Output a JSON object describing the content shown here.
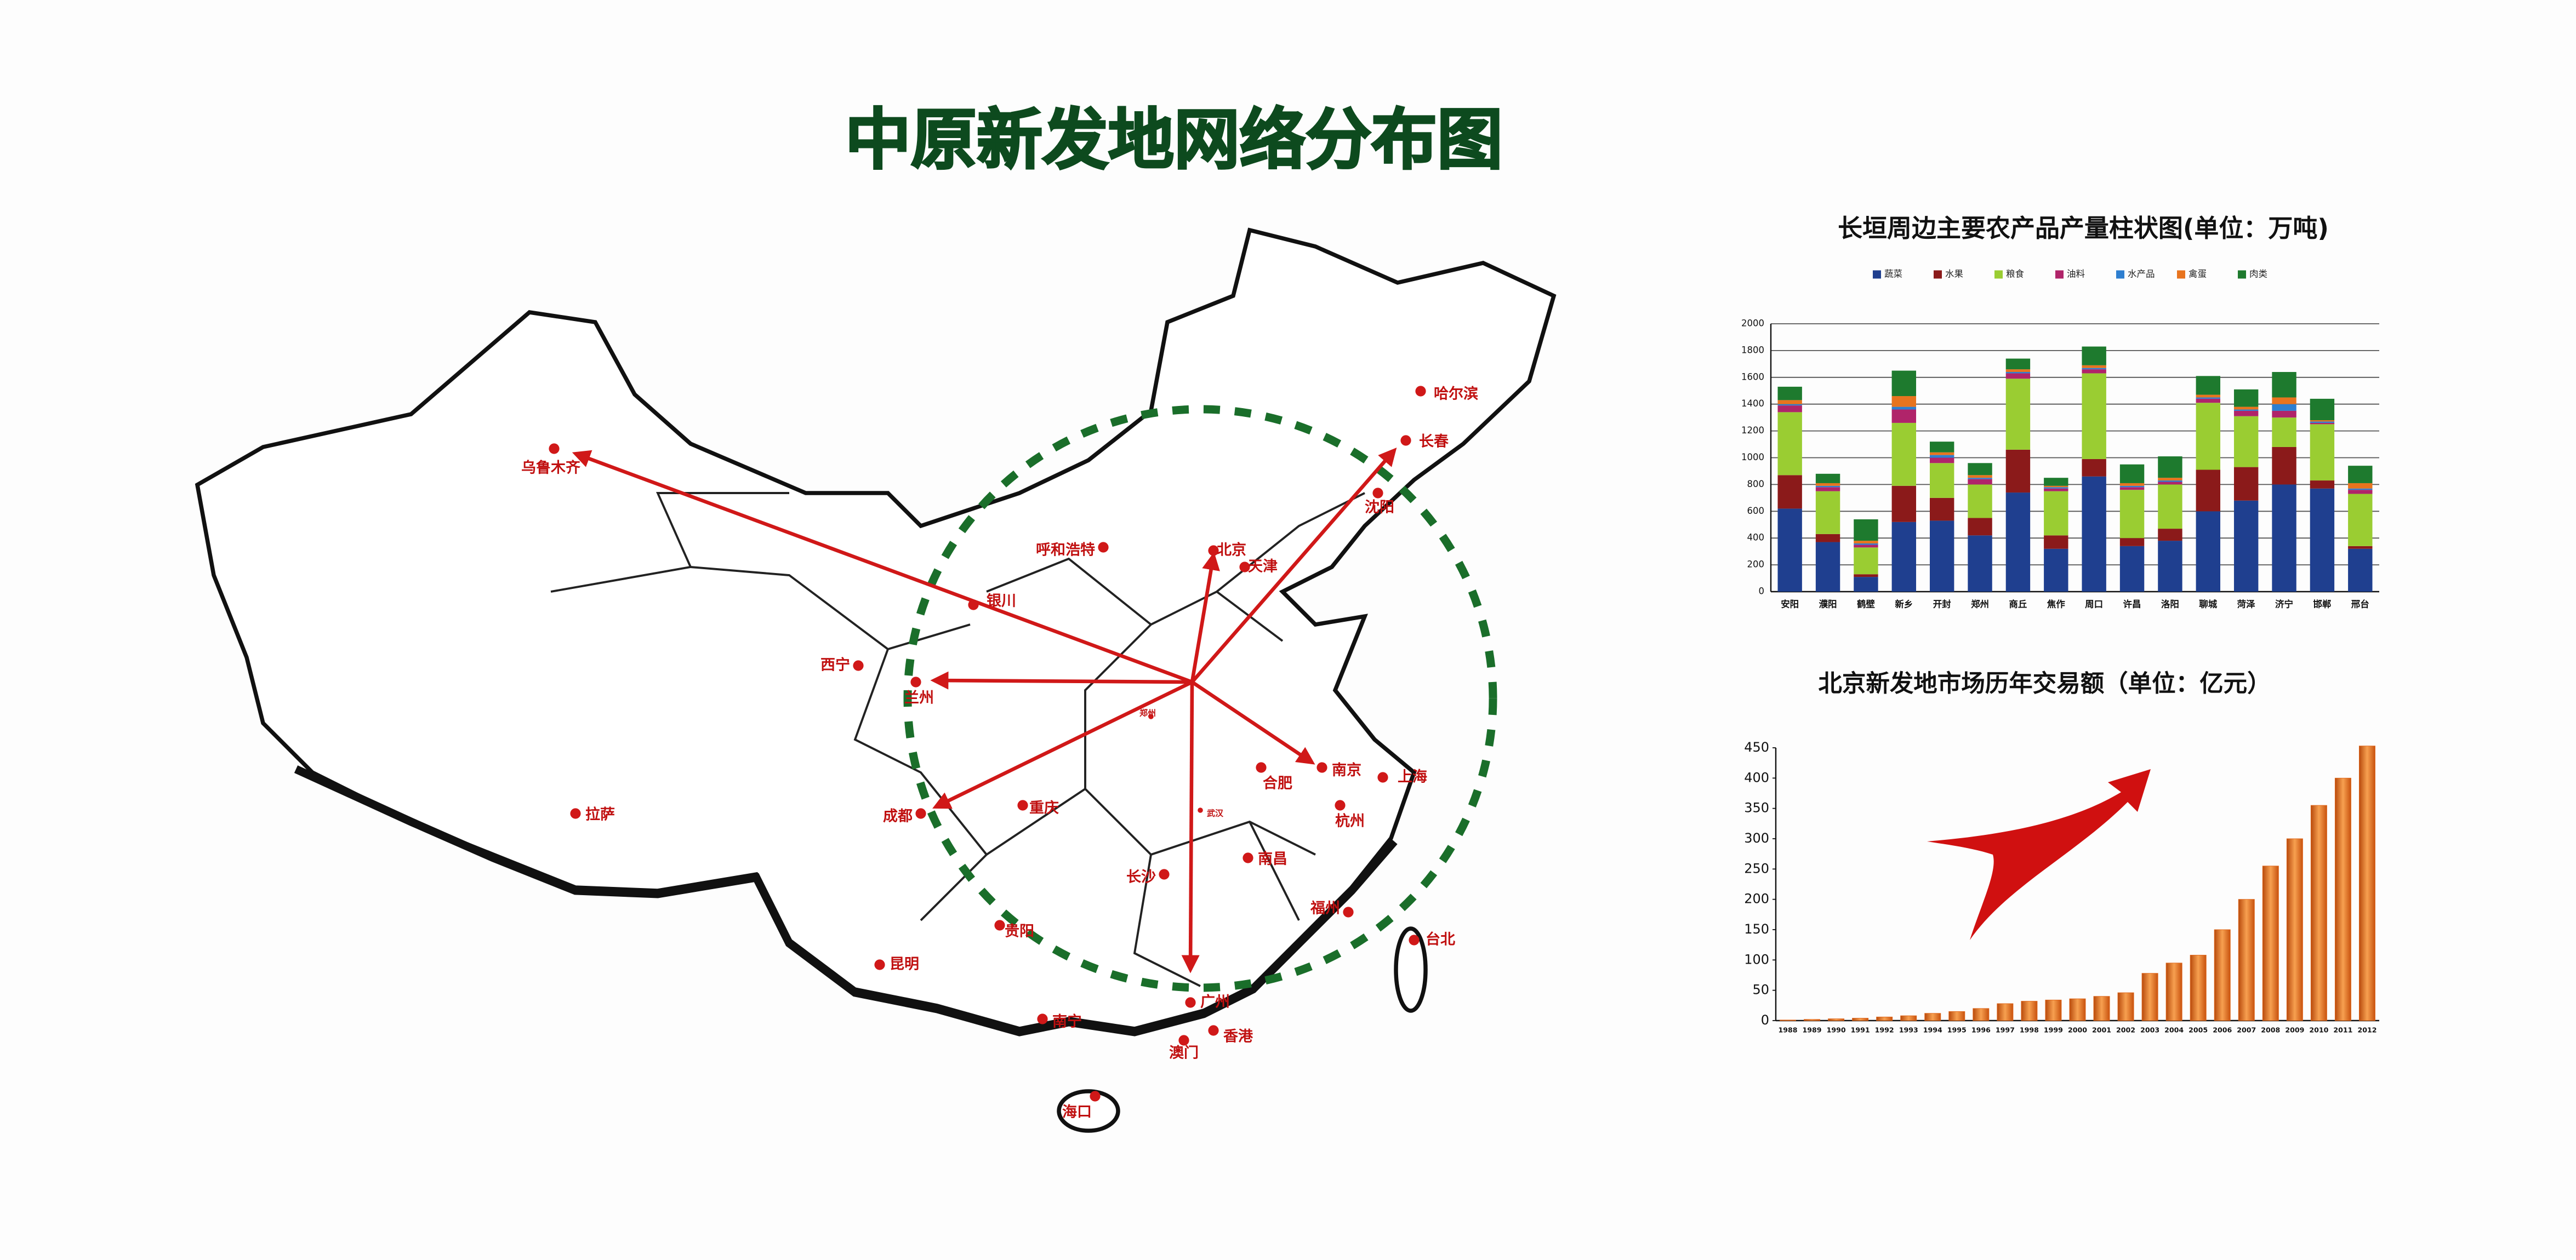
{
  "title": "中原新发地网络分布图",
  "map": {
    "cities": [
      "乌鲁木齐",
      "哈尔滨",
      "长春",
      "沈阳",
      "北京",
      "天津",
      "呼和浩特",
      "银川",
      "西宁",
      "兰州",
      "拉萨",
      "成都",
      "重庆",
      "郑州",
      "武汉",
      "合肥",
      "南京",
      "上海",
      "杭州",
      "长沙",
      "南昌",
      "福州",
      "台北",
      "贵阳",
      "昆明",
      "南宁",
      "广州",
      "香港",
      "澳门",
      "海口"
    ]
  },
  "chart_data": [
    {
      "type": "stacked-bar",
      "title": "长垣周边主要农产品产量柱状图(单位：万吨)",
      "categories": [
        "安阳",
        "濮阳",
        "鹤壁",
        "新乡",
        "开封",
        "郑州",
        "商丘",
        "焦作",
        "周口",
        "许昌",
        "洛阳",
        "聊城",
        "菏泽",
        "济宁",
        "邯郸",
        "邢台"
      ],
      "series": [
        {
          "name": "蔬菜",
          "color": "#1f3f8f",
          "values": [
            620,
            370,
            110,
            520,
            530,
            420,
            740,
            320,
            860,
            340,
            380,
            600,
            680,
            800,
            770,
            320
          ]
        },
        {
          "name": "水果",
          "color": "#8b1a1a",
          "values": [
            250,
            60,
            20,
            270,
            170,
            130,
            320,
            100,
            130,
            60,
            90,
            310,
            250,
            280,
            60,
            20
          ]
        },
        {
          "name": "粮食",
          "color": "#9acd32",
          "values": [
            470,
            320,
            200,
            470,
            260,
            250,
            530,
            330,
            640,
            360,
            330,
            500,
            380,
            220,
            420,
            390
          ]
        },
        {
          "name": "油料",
          "color": "#b0246a",
          "values": [
            50,
            30,
            20,
            100,
            40,
            40,
            40,
            20,
            30,
            20,
            20,
            30,
            40,
            50,
            10,
            30
          ]
        },
        {
          "name": "水产品",
          "color": "#2e7fd0",
          "values": [
            10,
            10,
            10,
            20,
            20,
            10,
            10,
            10,
            10,
            10,
            10,
            10,
            10,
            50,
            10,
            10
          ]
        },
        {
          "name": "禽蛋",
          "color": "#e8741e",
          "values": [
            30,
            20,
            20,
            80,
            20,
            20,
            20,
            10,
            20,
            20,
            20,
            20,
            20,
            50,
            10,
            40
          ]
        },
        {
          "name": "肉类",
          "color": "#1e7a2e",
          "values": [
            100,
            70,
            160,
            190,
            80,
            90,
            80,
            60,
            140,
            140,
            160,
            140,
            130,
            190,
            160,
            130
          ]
        }
      ],
      "ylim": [
        0,
        2000
      ],
      "yticks": [
        0,
        200,
        400,
        600,
        800,
        1000,
        1200,
        1400,
        1600,
        1800,
        2000
      ],
      "grid": true
    },
    {
      "type": "bar",
      "title": "北京新发地市场历年交易额（单位：亿元）",
      "categories": [
        "1988",
        "1989",
        "1990",
        "1991",
        "1992",
        "1993",
        "1994",
        "1995",
        "1996",
        "1997",
        "1998",
        "1999",
        "2000",
        "2001",
        "2002",
        "2003",
        "2004",
        "2005",
        "2006",
        "2007",
        "2008",
        "2009",
        "2010",
        "2011",
        "2012"
      ],
      "values": [
        1,
        2,
        3,
        4,
        6,
        8,
        12,
        15,
        20,
        28,
        32,
        34,
        36,
        40,
        46,
        78,
        95,
        108,
        150,
        200,
        255,
        300,
        355,
        400,
        453
      ],
      "color": "#e0661a",
      "ylim": [
        0,
        450
      ],
      "yticks": [
        0,
        50,
        100,
        150,
        200,
        250,
        300,
        350,
        400,
        450
      ],
      "grid": false
    }
  ]
}
